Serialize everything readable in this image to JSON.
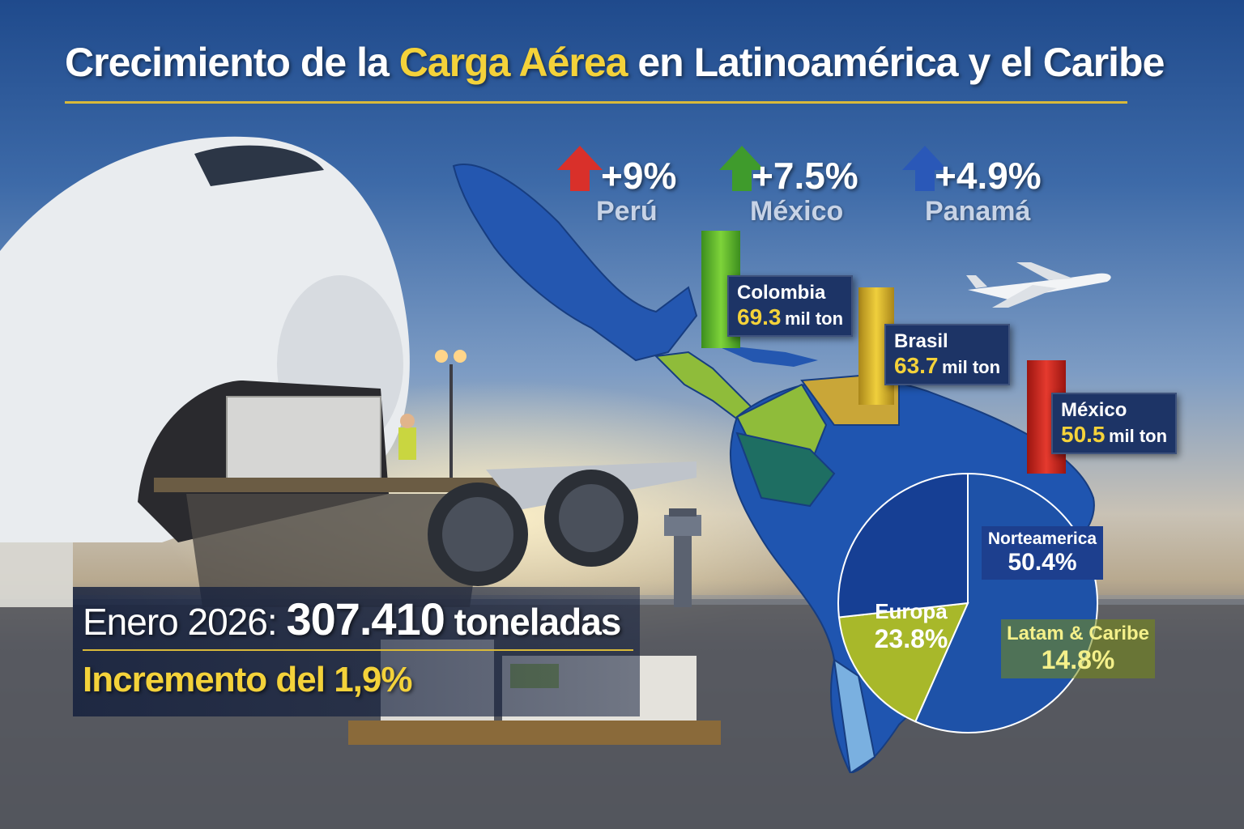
{
  "title": {
    "part1": "Crecimiento de la ",
    "highlight": "Carga Aérea",
    "part2": " en Latinoamérica y el Caribe"
  },
  "growth": [
    {
      "pct": "+9%",
      "country": "Perú",
      "color": "#d9302a",
      "icon": "up-arrow-icon"
    },
    {
      "pct": "+7.5%",
      "country": "México",
      "color": "#3f9b2c",
      "icon": "up-arrow-icon"
    },
    {
      "pct": "+4.9%",
      "country": "Panamá",
      "color": "#2a58b8",
      "icon": "up-arrow-icon"
    }
  ],
  "volumes": [
    {
      "country": "Colombia",
      "value": "69.3",
      "unit": "mil ton",
      "color": "#62b82a"
    },
    {
      "country": "Brasil",
      "value": "63.7",
      "unit": "mil ton",
      "color": "#d8b52a"
    },
    {
      "country": "México",
      "value": "50.5",
      "unit": "mil ton",
      "color": "#d62a22"
    }
  ],
  "summary": {
    "lead": "Enero 2026:",
    "total": "307.410",
    "unit": "toneladas",
    "increase": "Incremento del 1,9%"
  },
  "chart_data": {
    "type": "pie",
    "slices": [
      {
        "label": "Norteamerica",
        "value": 50.4,
        "display": "50.4%",
        "color": "#1e52a8"
      },
      {
        "label": "Latam & Caribe",
        "value": 14.8,
        "display": "14.8%",
        "color": "#a8b82a"
      },
      {
        "label": "Europa",
        "value": 23.8,
        "display": "23.8%",
        "color": "#163f94"
      }
    ]
  }
}
